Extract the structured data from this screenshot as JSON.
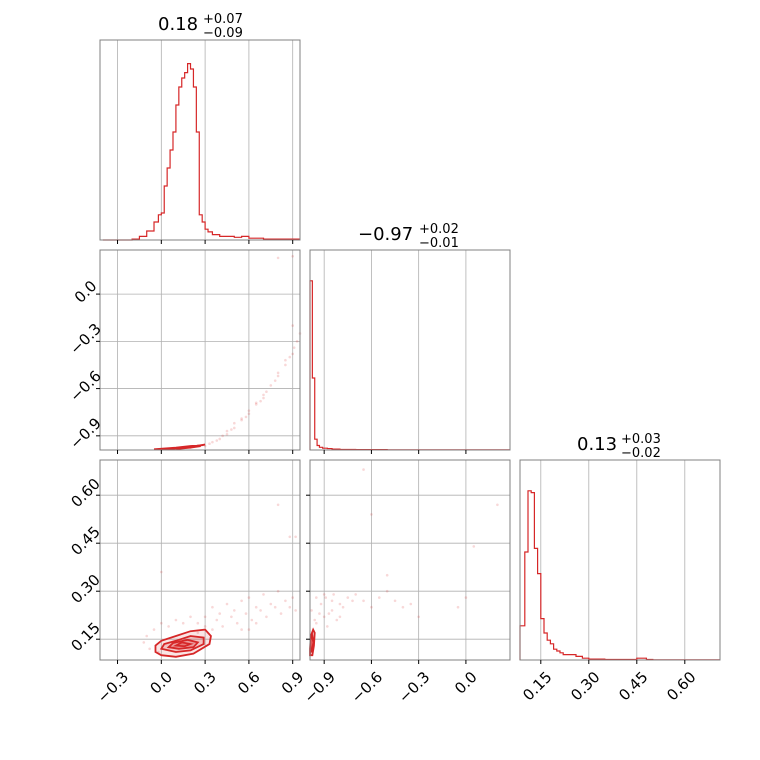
{
  "chart_data": {
    "type": "corner",
    "color": "#d62728",
    "grid": true,
    "titles": [
      {
        "median": "0.18",
        "plus": "+0.07",
        "minus": "−0.09"
      },
      {
        "median": "−0.97",
        "plus": "+0.02",
        "minus": "−0.01"
      },
      {
        "median": "0.13",
        "plus": "+0.03",
        "minus": "−0.02"
      }
    ],
    "axes": {
      "p0": {
        "range": [
          -0.42,
          0.95
        ],
        "ticks": [
          -0.3,
          0.0,
          0.3,
          0.6,
          0.9
        ],
        "tick_labels": [
          "−0.3",
          "0.0",
          "0.3",
          "0.6",
          "0.9"
        ]
      },
      "p1": {
        "range": [
          -0.99,
          0.28
        ],
        "ticks": [
          -0.9,
          -0.6,
          -0.3,
          0.0
        ],
        "tick_labels": [
          "−0.9",
          "−0.6",
          "−0.3",
          "0.0"
        ]
      },
      "p2": {
        "range": [
          0.085,
          0.71
        ],
        "ticks": [
          0.15,
          0.3,
          0.45,
          0.6
        ],
        "tick_labels": [
          "0.15",
          "0.30",
          "0.45",
          "0.60"
        ]
      }
    },
    "hist_p0": {
      "edges": [
        -0.4,
        -0.35,
        -0.3,
        -0.25,
        -0.2,
        -0.15,
        -0.1,
        -0.05,
        -0.02,
        0.0,
        0.02,
        0.04,
        0.06,
        0.08,
        0.1,
        0.12,
        0.14,
        0.16,
        0.18,
        0.2,
        0.22,
        0.24,
        0.26,
        0.28,
        0.3,
        0.32,
        0.35,
        0.4,
        0.45,
        0.5,
        0.55,
        0.6,
        0.65,
        0.7,
        0.8,
        0.9,
        0.95
      ],
      "counts": [
        0,
        0,
        0,
        0,
        0.005,
        0.02,
        0.05,
        0.1,
        0.14,
        0.15,
        0.3,
        0.4,
        0.5,
        0.6,
        0.75,
        0.85,
        0.9,
        0.93,
        0.98,
        0.95,
        0.85,
        0.6,
        0.14,
        0.1,
        0.06,
        0.045,
        0.03,
        0.02,
        0.02,
        0.015,
        0.02,
        0.01,
        0.01,
        0.005,
        0.005,
        0.005
      ]
    },
    "hist_p1": {
      "edges": [
        -0.99,
        -0.975,
        -0.96,
        -0.945,
        -0.93,
        -0.91,
        -0.88,
        -0.85,
        -0.8,
        -0.7,
        -0.5,
        -0.3,
        0.0,
        0.28
      ],
      "counts": [
        0.94,
        0.4,
        0.06,
        0.025,
        0.015,
        0.01,
        0.008,
        0.005,
        0.003,
        0.002,
        0.001,
        0.001,
        0.001
      ]
    },
    "hist_p2": {
      "edges": [
        0.085,
        0.1,
        0.11,
        0.12,
        0.13,
        0.14,
        0.15,
        0.16,
        0.17,
        0.18,
        0.19,
        0.2,
        0.21,
        0.22,
        0.24,
        0.26,
        0.28,
        0.3,
        0.35,
        0.45,
        0.48,
        0.5,
        0.71
      ],
      "counts": [
        0.19,
        0.6,
        0.94,
        0.93,
        0.62,
        0.48,
        0.23,
        0.15,
        0.11,
        0.09,
        0.06,
        0.05,
        0.04,
        0.03,
        0.03,
        0.02,
        0.01,
        0.005,
        0.003,
        0.01,
        0.003,
        0.001
      ]
    },
    "scatter_p0_p1": [
      [
        0.05,
        -0.985
      ],
      [
        0.1,
        -0.98
      ],
      [
        0.2,
        -0.975
      ],
      [
        0.3,
        -0.965
      ],
      [
        0.35,
        -0.94
      ],
      [
        0.4,
        -0.92
      ],
      [
        0.45,
        -0.89
      ],
      [
        0.5,
        -0.85
      ],
      [
        0.55,
        -0.8
      ],
      [
        0.6,
        -0.74
      ],
      [
        0.65,
        -0.7
      ],
      [
        0.7,
        -0.64
      ],
      [
        0.75,
        -0.58
      ],
      [
        0.8,
        -0.52
      ],
      [
        0.85,
        -0.45
      ],
      [
        0.9,
        -0.38
      ],
      [
        0.93,
        -0.3
      ],
      [
        0.95,
        -0.25
      ],
      [
        0.5,
        -0.82
      ],
      [
        0.45,
        -0.87
      ],
      [
        0.6,
        -0.76
      ],
      [
        0.7,
        -0.66
      ],
      [
        0.55,
        -0.79
      ],
      [
        0.65,
        -0.69
      ],
      [
        0.8,
        -0.5
      ],
      [
        0.85,
        -0.42
      ],
      [
        0.38,
        -0.93
      ],
      [
        0.42,
        -0.9
      ],
      [
        0.25,
        -0.96
      ],
      [
        0.15,
        -0.975
      ],
      [
        0.33,
        -0.95
      ],
      [
        0.48,
        -0.86
      ],
      [
        0.58,
        -0.78
      ],
      [
        0.68,
        -0.68
      ],
      [
        0.72,
        -0.62
      ],
      [
        0.78,
        -0.55
      ],
      [
        0.88,
        -0.4
      ],
      [
        0.91,
        -0.34
      ],
      [
        0.9,
        0.24
      ],
      [
        0.8,
        0.23
      ],
      [
        0.9,
        -0.2
      ]
    ],
    "contour_p0_p1": [
      [
        [
          -0.05,
          -0.985
        ],
        [
          0.1,
          -0.975
        ],
        [
          0.2,
          -0.965
        ],
        [
          0.28,
          -0.96
        ],
        [
          0.3,
          -0.955
        ],
        [
          0.2,
          -0.97
        ],
        [
          0.05,
          -0.985
        ]
      ],
      [
        [
          0.1,
          -0.98
        ],
        [
          0.2,
          -0.97
        ],
        [
          0.27,
          -0.965
        ],
        [
          0.2,
          -0.975
        ],
        [
          0.12,
          -0.982
        ]
      ]
    ],
    "scatter_p0_p2": [
      [
        0.3,
        0.22
      ],
      [
        0.35,
        0.25
      ],
      [
        0.4,
        0.23
      ],
      [
        0.45,
        0.26
      ],
      [
        0.5,
        0.24
      ],
      [
        0.55,
        0.27
      ],
      [
        0.6,
        0.28
      ],
      [
        0.65,
        0.25
      ],
      [
        0.7,
        0.29
      ],
      [
        0.75,
        0.26
      ],
      [
        0.8,
        0.3
      ],
      [
        0.85,
        0.27
      ],
      [
        0.9,
        0.28
      ],
      [
        0.25,
        0.2
      ],
      [
        0.38,
        0.21
      ],
      [
        0.48,
        0.22
      ],
      [
        0.58,
        0.23
      ],
      [
        0.68,
        0.24
      ],
      [
        0.78,
        0.25
      ],
      [
        0.2,
        0.22
      ],
      [
        0.1,
        0.21
      ],
      [
        0.0,
        0.2
      ],
      [
        -0.05,
        0.18
      ],
      [
        -0.1,
        0.16
      ],
      [
        -0.12,
        0.14
      ],
      [
        0.05,
        0.19
      ],
      [
        0.15,
        0.2
      ],
      [
        0.42,
        0.19
      ],
      [
        0.52,
        0.2
      ],
      [
        0.62,
        0.21
      ],
      [
        0.72,
        0.22
      ],
      [
        0.82,
        0.23
      ],
      [
        0.88,
        0.25
      ],
      [
        0.92,
        0.24
      ],
      [
        0.3,
        0.19
      ],
      [
        0.35,
        0.18
      ],
      [
        0.25,
        0.17
      ],
      [
        -0.08,
        0.12
      ],
      [
        -0.02,
        0.11
      ],
      [
        0.0,
        0.36
      ],
      [
        0.8,
        0.57
      ],
      [
        0.92,
        0.47
      ],
      [
        0.88,
        0.47
      ],
      [
        0.6,
        0.18
      ],
      [
        0.65,
        0.2
      ],
      [
        0.55,
        0.18
      ]
    ],
    "contour_p0_p2": [
      [
        [
          -0.04,
          0.11
        ],
        [
          0.0,
          0.1
        ],
        [
          0.1,
          0.095
        ],
        [
          0.22,
          0.105
        ],
        [
          0.33,
          0.135
        ],
        [
          0.34,
          0.16
        ],
        [
          0.3,
          0.18
        ],
        [
          0.2,
          0.175
        ],
        [
          0.1,
          0.16
        ],
        [
          0.0,
          0.145
        ],
        [
          -0.04,
          0.13
        ],
        [
          -0.04,
          0.11
        ]
      ],
      [
        [
          0.0,
          0.12
        ],
        [
          0.1,
          0.11
        ],
        [
          0.2,
          0.115
        ],
        [
          0.29,
          0.135
        ],
        [
          0.29,
          0.155
        ],
        [
          0.2,
          0.16
        ],
        [
          0.1,
          0.145
        ],
        [
          0.02,
          0.135
        ],
        [
          0.0,
          0.12
        ]
      ],
      [
        [
          0.05,
          0.125
        ],
        [
          0.12,
          0.12
        ],
        [
          0.22,
          0.125
        ],
        [
          0.25,
          0.14
        ],
        [
          0.18,
          0.148
        ],
        [
          0.08,
          0.138
        ],
        [
          0.05,
          0.125
        ]
      ],
      [
        [
          0.1,
          0.13
        ],
        [
          0.16,
          0.128
        ],
        [
          0.2,
          0.135
        ],
        [
          0.14,
          0.14
        ],
        [
          0.1,
          0.13
        ]
      ]
    ],
    "scatter_p1_p2": [
      [
        -0.95,
        0.2
      ],
      [
        -0.9,
        0.22
      ],
      [
        -0.85,
        0.24
      ],
      [
        -0.8,
        0.26
      ],
      [
        -0.75,
        0.28
      ],
      [
        -0.7,
        0.29
      ],
      [
        -0.65,
        0.27
      ],
      [
        -0.6,
        0.25
      ],
      [
        -0.55,
        0.28
      ],
      [
        -0.5,
        0.3
      ],
      [
        -0.45,
        0.27
      ],
      [
        -0.4,
        0.25
      ],
      [
        -0.35,
        0.26
      ],
      [
        -0.3,
        0.22
      ],
      [
        -0.97,
        0.17
      ],
      [
        -0.96,
        0.21
      ],
      [
        -0.93,
        0.23
      ],
      [
        -0.88,
        0.19
      ],
      [
        -0.85,
        0.27
      ],
      [
        -0.82,
        0.21
      ],
      [
        -0.78,
        0.25
      ],
      [
        -0.92,
        0.26
      ],
      [
        -0.89,
        0.28
      ],
      [
        -0.84,
        0.29
      ],
      [
        -0.72,
        0.27
      ],
      [
        0.05,
        0.44
      ],
      [
        0.2,
        0.57
      ],
      [
        0.0,
        0.28
      ],
      [
        -0.05,
        0.25
      ],
      [
        -0.65,
        0.68
      ],
      [
        -0.6,
        0.54
      ],
      [
        -0.5,
        0.35
      ],
      [
        -0.95,
        0.28
      ],
      [
        -0.9,
        0.29
      ],
      [
        -0.98,
        0.24
      ],
      [
        -0.87,
        0.23
      ],
      [
        -0.8,
        0.22
      ]
    ],
    "contour_p1_p2": [
      [
        [
          -0.99,
          0.1
        ],
        [
          -0.975,
          0.1
        ],
        [
          -0.965,
          0.13
        ],
        [
          -0.96,
          0.17
        ],
        [
          -0.97,
          0.18
        ],
        [
          -0.985,
          0.16
        ],
        [
          -0.99,
          0.12
        ]
      ],
      [
        [
          -0.985,
          0.11
        ],
        [
          -0.975,
          0.115
        ],
        [
          -0.97,
          0.14
        ],
        [
          -0.975,
          0.16
        ],
        [
          -0.985,
          0.15
        ]
      ]
    ]
  }
}
